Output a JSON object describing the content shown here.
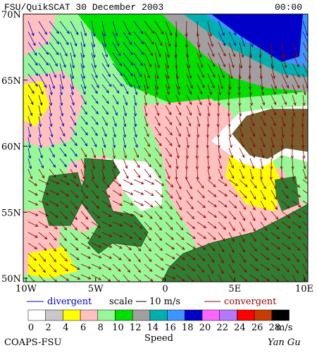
{
  "header": {
    "title": "FSU/QuikSCAT 30 December 2003",
    "time": "00:00"
  },
  "map": {
    "lat_labels": [
      "70N",
      "65N",
      "60N",
      "55N",
      "50N"
    ],
    "lon_labels": [
      "10W",
      "5W",
      "0",
      "5E",
      "10E"
    ]
  },
  "legend": {
    "divergent": "divergent",
    "scale": "scale",
    "scale_value": "10 m/s",
    "convergent": "convergent"
  },
  "colorbar": {
    "colors": [
      "#ffffff",
      "#c8c8c8",
      "#ffff00",
      "#ffc0c0",
      "#98f898",
      "#00e000",
      "#a0a0a0",
      "#00b0b0",
      "#3c96ff",
      "#0000c8",
      "#ff64ff",
      "#b478ff",
      "#ff0000",
      "#c83c00",
      "#000000"
    ],
    "labels": [
      "0",
      "2",
      "4",
      "6",
      "8",
      "10",
      "12",
      "14",
      "16",
      "18",
      "20",
      "22",
      "24",
      "26",
      "28"
    ],
    "unit": "m/s",
    "title": "Speed"
  },
  "footer": {
    "left": "COAPS-FSU",
    "right": "Yan Gu"
  }
}
